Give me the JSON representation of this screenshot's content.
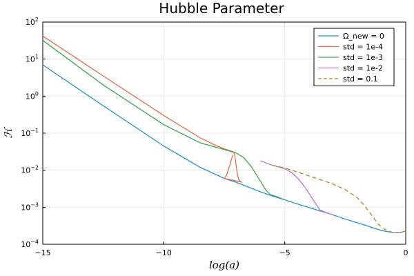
{
  "chart_data": {
    "type": "line",
    "title": "Hubble Parameter",
    "xlabel": "log(a)",
    "ylabel": "ℋ",
    "xlim": [
      -15,
      0
    ],
    "ylim_log10": [
      -4,
      2
    ],
    "yscale": "log",
    "x_ticks": [
      -15,
      -10,
      -5,
      0
    ],
    "x_tick_labels": [
      "−15",
      "−10",
      "−5",
      "0"
    ],
    "y_ticks_log10": [
      -4,
      -3,
      -2,
      -1,
      0,
      1,
      2
    ],
    "y_tick_base": "10",
    "y_tick_exponents": [
      "−4",
      "−3",
      "−2",
      "−1",
      "0",
      "1",
      "2"
    ],
    "grid": true,
    "legend_position": "top-right",
    "series": [
      {
        "name": "Ω_new = 0",
        "color": "#1f8fd9",
        "dash": "solid",
        "points": [
          [
            -15,
            7.0
          ],
          [
            -12.5,
            0.55
          ],
          [
            -10,
            0.045
          ],
          [
            -8.5,
            0.012
          ],
          [
            -7.5,
            0.006
          ],
          [
            -7.0,
            0.0047
          ],
          [
            -6.5,
            0.0035
          ],
          [
            -6.0,
            0.0026
          ],
          [
            -5.5,
            0.002
          ],
          [
            -5,
            0.00158
          ],
          [
            -4.5,
            0.00124
          ],
          [
            -4,
            0.00098
          ],
          [
            -3.5,
            0.00078
          ],
          [
            -3,
            0.00062
          ],
          [
            -2.5,
            0.00048
          ],
          [
            -2,
            0.00038
          ],
          [
            -1.5,
            0.0003
          ],
          [
            -1,
            0.000235
          ],
          [
            -0.5,
            0.000205
          ],
          [
            -0.2,
            0.00021
          ],
          [
            0,
            0.00023
          ]
        ]
      },
      {
        "name": "std = 1e-4",
        "color": "#e26f46",
        "dash": "solid",
        "points": [
          [
            -15,
            42
          ],
          [
            -12.5,
            3.5
          ],
          [
            -10,
            0.3
          ],
          [
            -8.5,
            0.075
          ],
          [
            -7.8,
            0.045
          ],
          [
            -7.3,
            0.034
          ],
          [
            -7.1,
            0.031
          ],
          [
            -7.05,
            0.022
          ],
          [
            -7.0,
            0.012
          ],
          [
            -6.95,
            0.0075
          ],
          [
            -6.9,
            0.0055
          ],
          [
            -6.8,
            0.0048
          ],
          [
            -7.5,
            0.006
          ],
          [
            -7.4,
            0.0075
          ],
          [
            -7.25,
            0.015
          ],
          [
            -7.15,
            0.026
          ]
        ]
      },
      {
        "name": "std = 1e-3",
        "color": "#3da44d",
        "dash": "solid",
        "points": [
          [
            -15,
            32
          ],
          [
            -12.5,
            2.0
          ],
          [
            -10,
            0.17
          ],
          [
            -8.5,
            0.055
          ],
          [
            -7.5,
            0.036
          ],
          [
            -7.0,
            0.029
          ],
          [
            -6.7,
            0.022
          ],
          [
            -6.4,
            0.013
          ],
          [
            -6.0,
            0.005
          ],
          [
            -5.8,
            0.003
          ],
          [
            -5.6,
            0.0022
          ],
          [
            -5.3,
            0.0019
          ],
          [
            -5.0,
            0.00158
          ]
        ]
      },
      {
        "name": "std = 1e-2",
        "color": "#c271d2",
        "dash": "solid",
        "points": [
          [
            -6.0,
            0.018
          ],
          [
            -5.5,
            0.0135
          ],
          [
            -5.0,
            0.011
          ],
          [
            -4.7,
            0.0085
          ],
          [
            -4.4,
            0.0055
          ],
          [
            -4.1,
            0.003
          ],
          [
            -3.8,
            0.0015
          ],
          [
            -3.55,
            0.00085
          ],
          [
            -3.3,
            0.00072
          ],
          [
            -3.0,
            0.00062
          ]
        ]
      },
      {
        "name": "std = 0.1",
        "color": "#ac8d18",
        "dash": "dashed",
        "points": [
          [
            -5.5,
            0.0135
          ],
          [
            -5.0,
            0.0115
          ],
          [
            -4.5,
            0.009
          ],
          [
            -4.0,
            0.007
          ],
          [
            -3.5,
            0.0055
          ],
          [
            -3.0,
            0.0042
          ],
          [
            -2.5,
            0.003
          ],
          [
            -2.0,
            0.0018
          ],
          [
            -1.7,
            0.0011
          ],
          [
            -1.4,
            0.0006
          ],
          [
            -1.1,
            0.00033
          ],
          [
            -0.8,
            0.00024
          ],
          [
            -0.5,
            0.000205
          ],
          [
            -0.2,
            0.00021
          ],
          [
            0,
            0.00023
          ]
        ]
      }
    ]
  }
}
